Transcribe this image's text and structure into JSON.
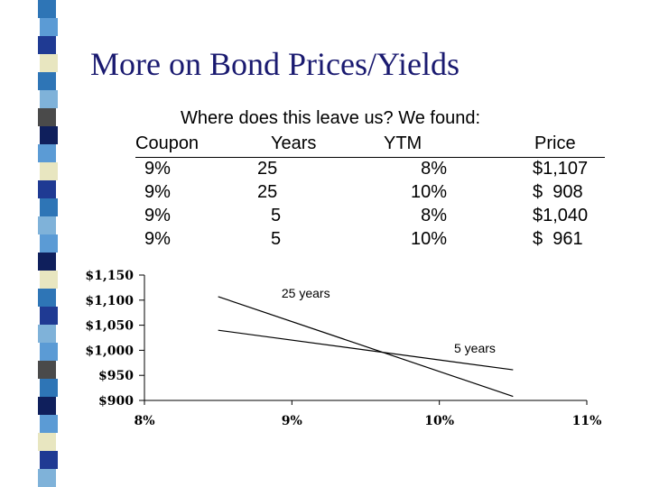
{
  "slide": {
    "title": "More on Bond Prices/Yields",
    "subtitle": "Where does this leave us?  We found:"
  },
  "table": {
    "headers": [
      "Coupon",
      "Years",
      "YTM",
      "Price"
    ],
    "rows": [
      [
        "9%",
        "25",
        "8%",
        "$1,107"
      ],
      [
        "9%",
        "25",
        "10%",
        "$  908"
      ],
      [
        "9%",
        "5",
        "8%",
        "$1,040"
      ],
      [
        "9%",
        "5",
        "10%",
        "$  961"
      ]
    ]
  },
  "decor": {
    "bar_colors": [
      "#5b9bd5",
      "#1f3a93",
      "#2e75b6",
      "#e8e6c0",
      "#4a4a4a",
      "#7fb2d9",
      "#0f1f5c"
    ]
  },
  "chart_data": {
    "type": "line",
    "y_tick_labels": [
      "$1,150",
      "$1,100",
      "$1,050",
      "$1,000",
      "$950",
      "$900"
    ],
    "x_tick_labels": [
      "8%",
      "9%",
      "10%",
      "11%"
    ],
    "xlim": [
      8,
      11
    ],
    "ylim": [
      900,
      1150
    ],
    "grid": false,
    "series": [
      {
        "name": "25 years",
        "x": [
          8.5,
          10.5
        ],
        "y": [
          1107,
          908
        ]
      },
      {
        "name": "5 years",
        "x": [
          8.5,
          10.5
        ],
        "y": [
          1040,
          961
        ]
      }
    ]
  }
}
